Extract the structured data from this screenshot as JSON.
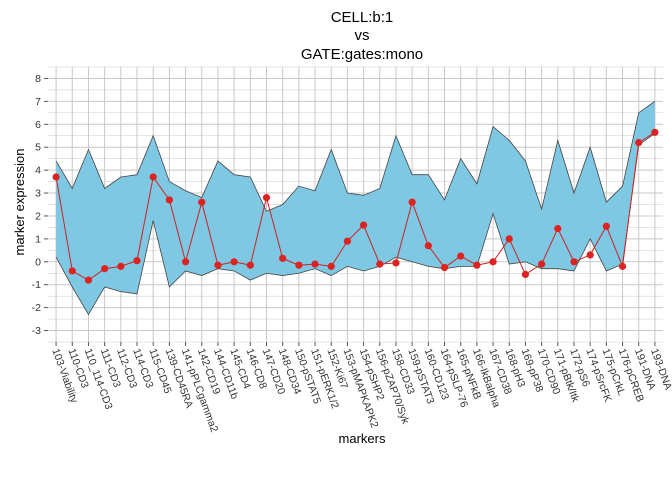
{
  "chart_data": {
    "type": "area",
    "title_lines": [
      "CELL:b:1",
      "vs",
      "GATE:gates:mono"
    ],
    "xlabel": "markers",
    "ylabel": "marker expression",
    "ylim": [
      -3.5,
      8.5
    ],
    "yticks": [
      -3,
      -2,
      -1,
      0,
      1,
      2,
      3,
      4,
      5,
      6,
      7,
      8
    ],
    "grid": true,
    "categories": [
      "103-Viability",
      "110-CD3",
      "110_114-CD3",
      "111-CD3",
      "112-CD3",
      "114-CD3",
      "115-CD45",
      "139-CD45RA",
      "141-pPLCgamma2",
      "142-CD19",
      "144-CD11b",
      "145-CD4",
      "146-CD8",
      "147-CD20",
      "148-CD34",
      "150-pSTAT5",
      "151-pERK1/2",
      "152-Ki67",
      "153-pMAPKAPK2",
      "154-pSHP2",
      "156-pZAP70/Syk",
      "158-CD33",
      "159-pSTAT3",
      "160-CD123",
      "164-pSLP-76",
      "165-pNFkB",
      "166-IkBalpha",
      "167-CD38",
      "168-pH3",
      "169-pP38",
      "170-CD90",
      "171-pBtk/Itk",
      "172-pS6",
      "174-pSrcFK",
      "175-pCrkL",
      "176-pCREB",
      "191-DNA",
      "193-DNA"
    ],
    "series": [
      {
        "role": "band-upper",
        "values": [
          4.4,
          3.2,
          4.9,
          3.2,
          3.7,
          3.8,
          5.5,
          3.5,
          3.1,
          2.8,
          4.4,
          3.8,
          3.7,
          2.2,
          2.5,
          3.3,
          3.1,
          4.9,
          3.0,
          2.9,
          3.2,
          5.5,
          3.8,
          3.8,
          2.7,
          4.5,
          3.4,
          5.9,
          5.3,
          4.4,
          2.3,
          5.3,
          3.0,
          5.0,
          2.6,
          3.3,
          6.5,
          7.0
        ]
      },
      {
        "role": "band-lower",
        "values": [
          0.2,
          -1.1,
          -2.3,
          -1.1,
          -1.3,
          -1.4,
          1.8,
          -1.1,
          -0.4,
          -0.6,
          -0.3,
          -0.4,
          -0.8,
          -0.5,
          -0.6,
          -0.5,
          -0.3,
          -0.6,
          -0.2,
          -0.4,
          -0.2,
          0.2,
          0.0,
          -0.2,
          -0.3,
          -0.2,
          -0.2,
          2.1,
          -0.1,
          0.0,
          -0.3,
          -0.3,
          -0.4,
          1.0,
          -0.4,
          -0.1,
          5.1,
          5.6
        ]
      },
      {
        "role": "line",
        "values": [
          3.7,
          -0.4,
          -0.8,
          -0.3,
          -0.2,
          0.05,
          3.7,
          2.7,
          0.0,
          2.6,
          -0.15,
          0.0,
          -0.15,
          2.8,
          0.15,
          -0.15,
          -0.1,
          -0.2,
          0.9,
          1.6,
          -0.1,
          -0.05,
          2.6,
          0.7,
          -0.25,
          0.25,
          -0.15,
          0.0,
          1.0,
          -0.55,
          -0.1,
          1.45,
          0.0,
          0.3,
          1.55,
          -0.2,
          5.2,
          5.65
        ]
      }
    ],
    "colors": {
      "band_fill": "#7ec8e3",
      "band_stroke": "#444444",
      "line": "#cc2222",
      "point": "#dd2222",
      "grid": "#c8c8c8"
    }
  }
}
